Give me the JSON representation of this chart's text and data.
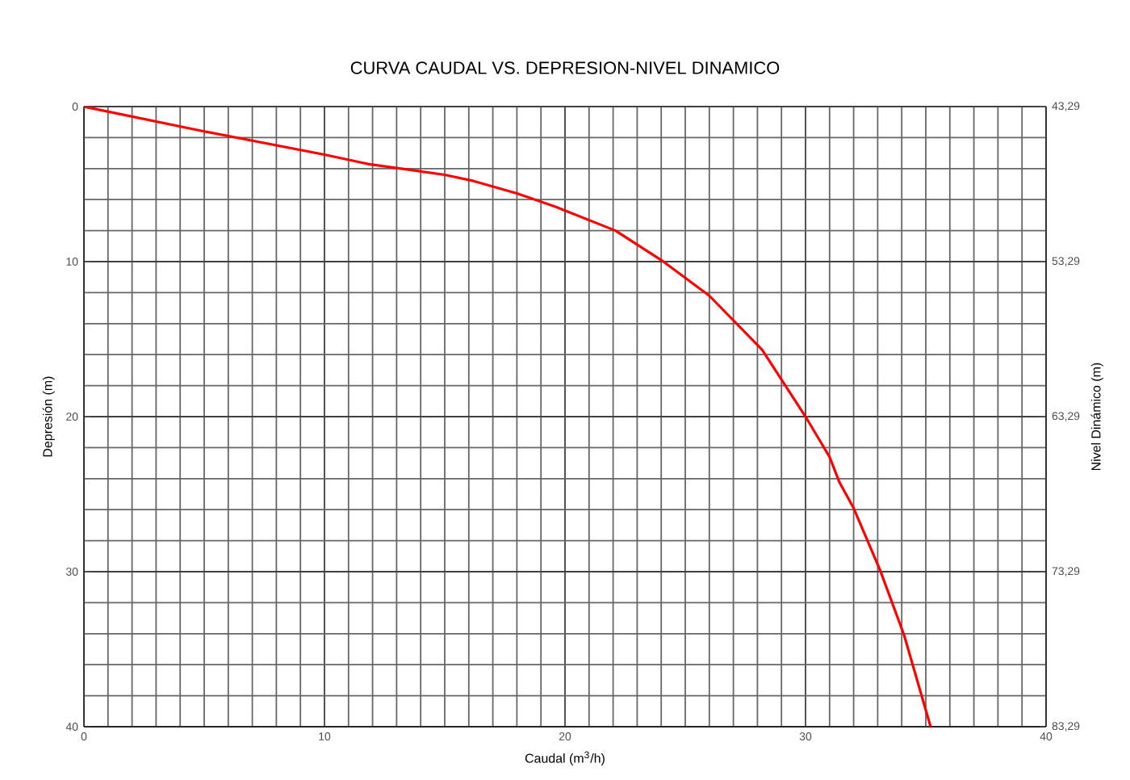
{
  "chart_data": {
    "type": "line",
    "title": "CURVA CAUDAL VS. DEPRESION-NIVEL DINAMICO",
    "xlabel": "Caudal (m$^{3}$/h)",
    "ylabel": "Depresión (m)",
    "y2label": "Nivel Dinámico (m)",
    "xlim": [
      0,
      40
    ],
    "xticks": [
      0,
      10,
      20,
      30,
      40
    ],
    "ylim": [
      40,
      0
    ],
    "yticks": [
      0,
      10,
      20,
      30,
      40
    ],
    "y2lim": [
      83.29,
      43.29
    ],
    "y2ticks": [
      {
        "value": 43.29,
        "label": "43,29"
      },
      {
        "value": 53.29,
        "label": "53,29"
      },
      {
        "value": 63.29,
        "label": "63,29"
      },
      {
        "value": 73.29,
        "label": "73,29"
      },
      {
        "value": 83.29,
        "label": "83,29"
      }
    ],
    "grid": true,
    "marker": "none",
    "line_style": "solid",
    "series": [
      {
        "color": "#ff0000",
        "x": [
          0,
          5,
          10,
          11.8,
          15,
          16.2,
          18,
          19.5,
          20,
          22.1,
          24,
          26.0,
          28.2,
          30.0,
          31.0,
          31.4,
          32.0,
          33.1,
          34.1,
          35.2
        ],
        "values": [
          0,
          1.6,
          3.1,
          3.7,
          4.4,
          4.8,
          5.6,
          6.4,
          6.7,
          8.0,
          9.9,
          12.2,
          15.7,
          20.0,
          22.6,
          24.2,
          25.9,
          29.9,
          34.1,
          40
        ]
      }
    ]
  }
}
